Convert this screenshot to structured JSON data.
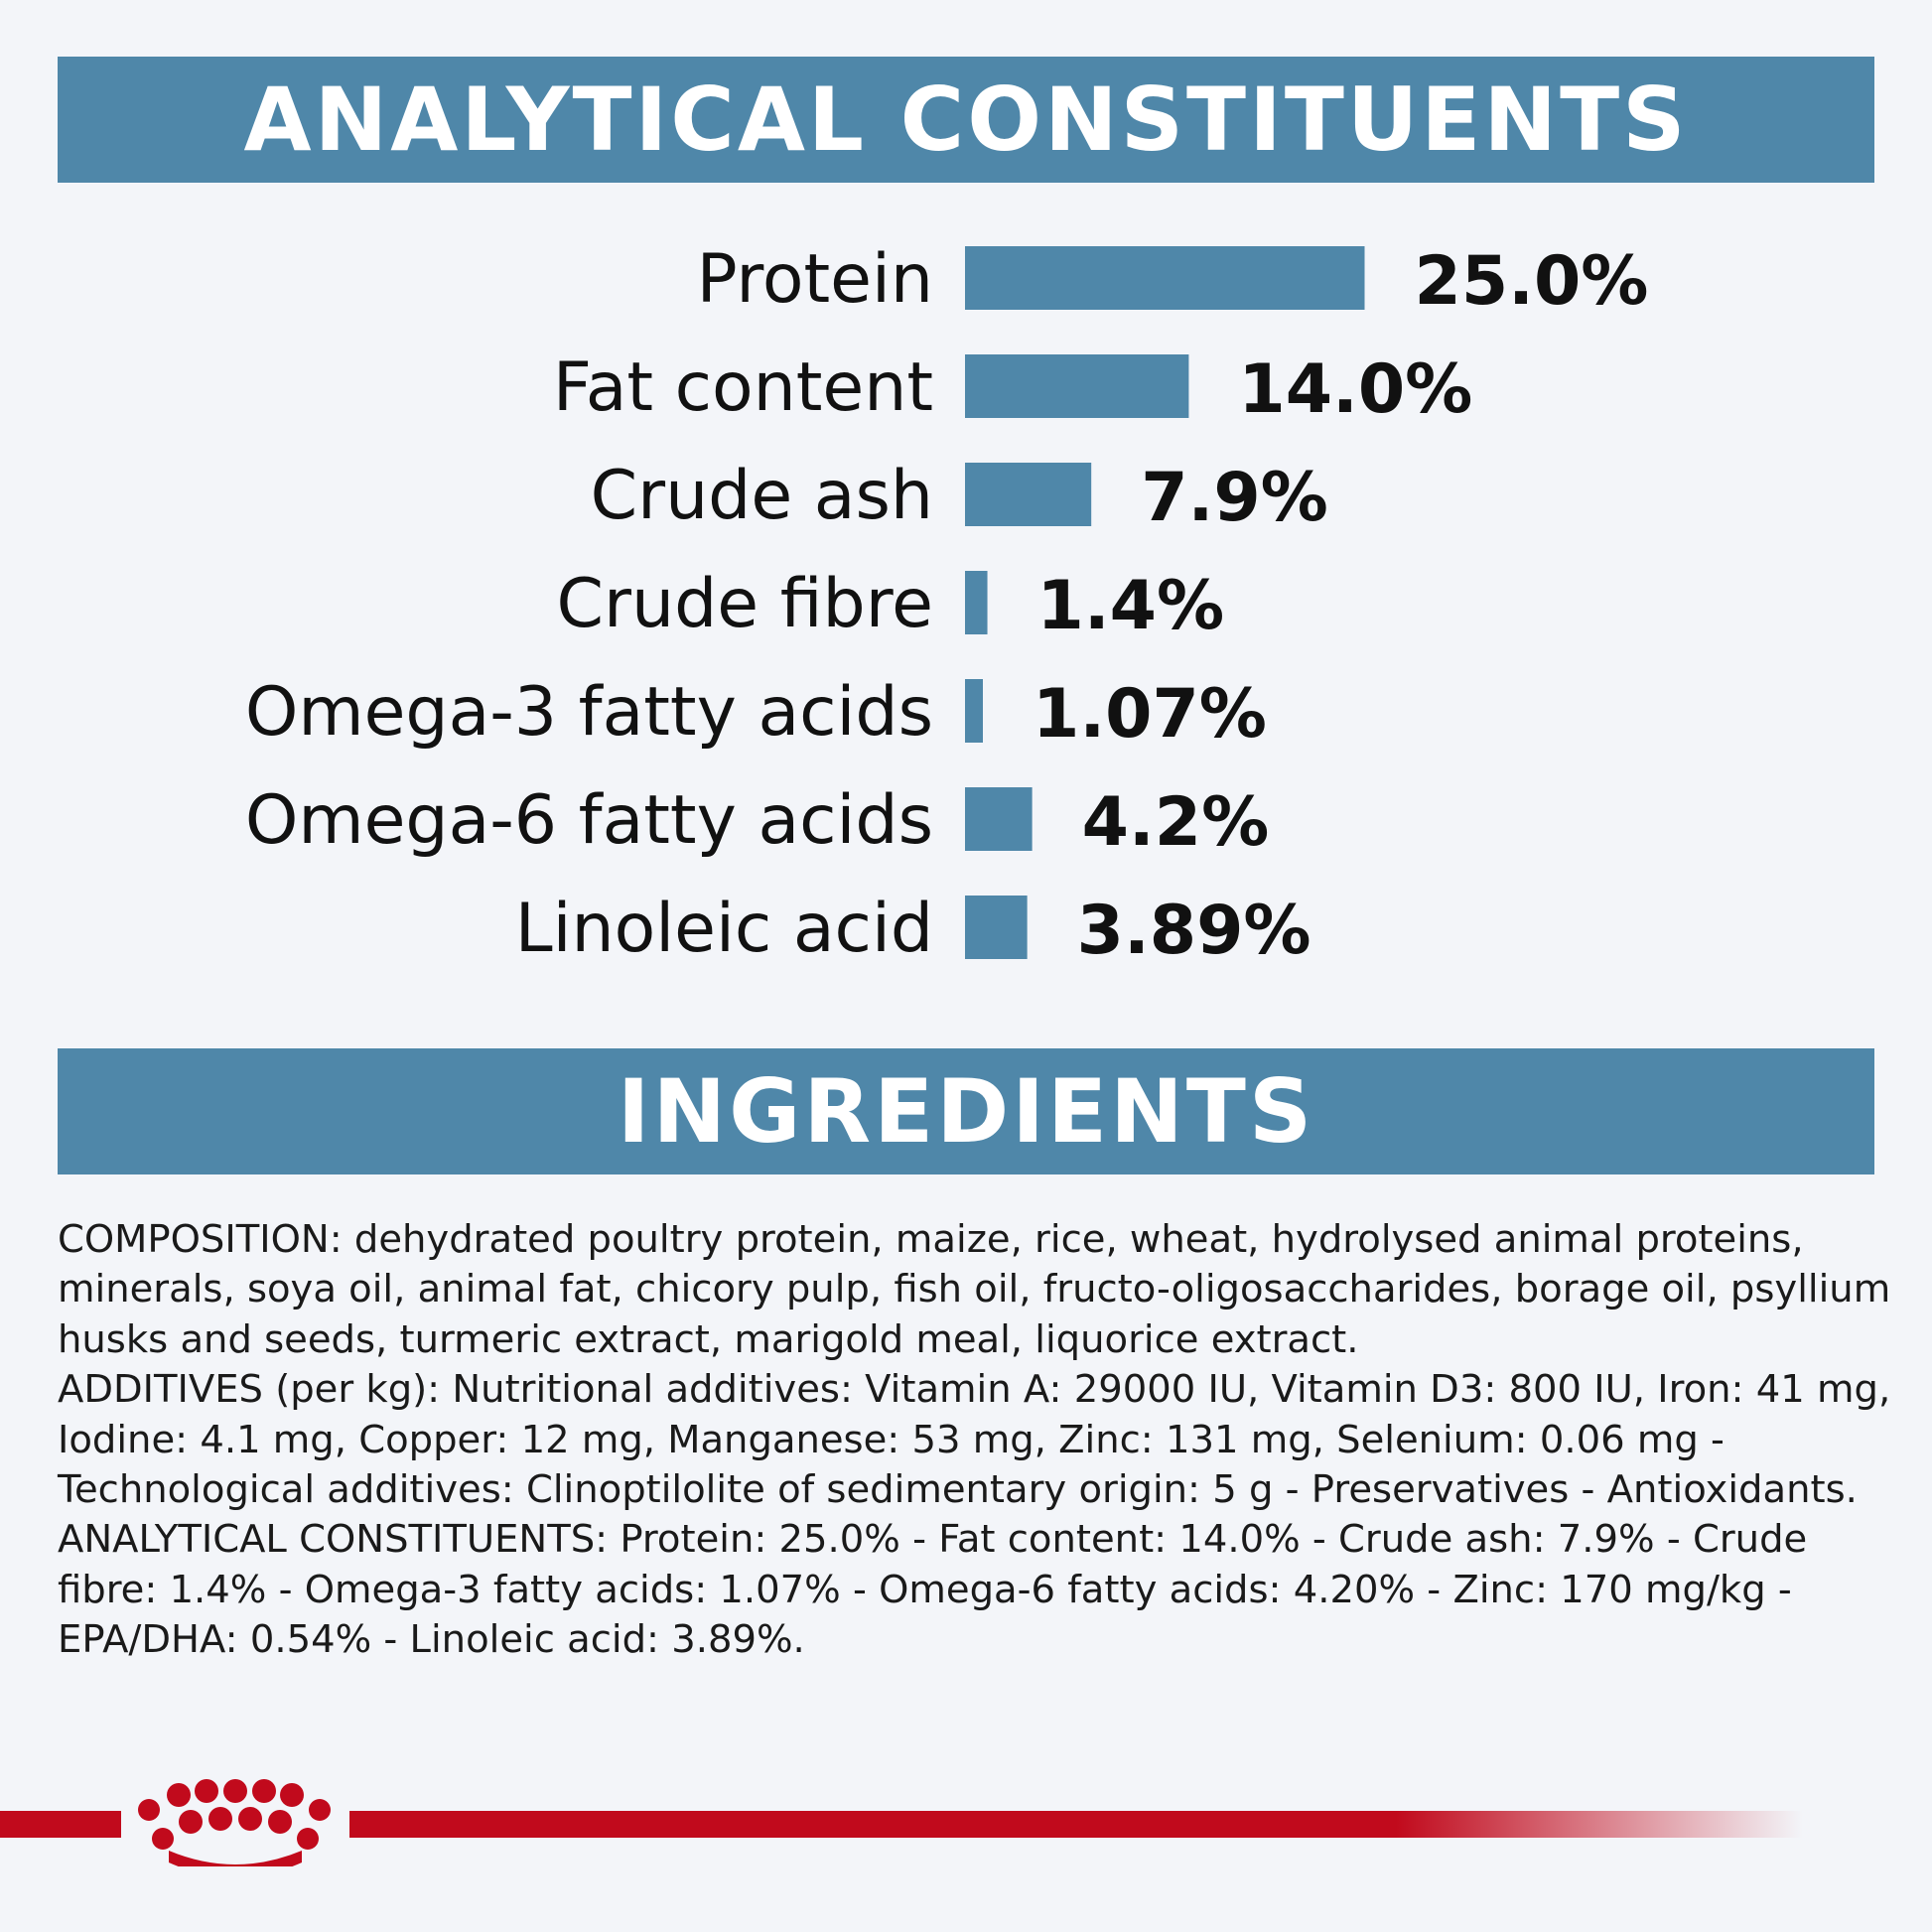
{
  "sections": {
    "analytical_title": "ANALYTICAL CONSTITUENTS",
    "ingredients_title": "INGREDIENTS"
  },
  "chart_data": {
    "type": "bar",
    "orientation": "horizontal",
    "categories": [
      "Protein",
      "Fat content",
      "Crude ash",
      "Crude fibre",
      "Omega-3 fatty acids",
      "Omega-6 fatty acids",
      "Linoleic acid"
    ],
    "values": [
      25.0,
      14.0,
      7.9,
      1.4,
      1.07,
      4.2,
      3.89
    ],
    "value_labels": [
      "25.0%",
      "14.0%",
      "7.9%",
      "1.4%",
      "1.07%",
      "4.2%",
      "3.89%"
    ],
    "unit": "%",
    "bar_color": "#4f87a9"
  },
  "ingredients": {
    "composition": "COMPOSITION: dehydrated poultry protein, maize, rice, wheat, hydrolysed animal proteins, minerals, soya oil, animal fat, chicory pulp, fish oil, fructo-oligosaccharides, borage oil, psyllium husks and seeds, turmeric extract, marigold meal, liquorice extract.",
    "additives": "ADDITIVES (per kg): Nutritional additives: Vitamin A: 29000 IU, Vitamin D3: 800 IU, Iron: 41 mg, Iodine: 4.1 mg, Copper: 12 mg, Manganese: 53 mg, Zinc: 131 mg, Selenium: 0.06 mg - Technological additives: Clinoptilolite of sedimentary origin: 5 g - Preservatives - Antioxidants.",
    "analytical": "ANALYTICAL CONSTITUENTS: Protein: 25.0% - Fat content: 14.0% - Crude ash: 7.9% - Crude fibre: 1.4% - Omega-3 fatty acids: 1.07% - Omega-6 fatty acids: 4.20% - Zinc: 170 mg/kg - EPA/DHA: 0.54% - Linoleic acid: 3.89%."
  },
  "brand": {
    "logo": "crown-logo",
    "color": "#c10a1c"
  }
}
